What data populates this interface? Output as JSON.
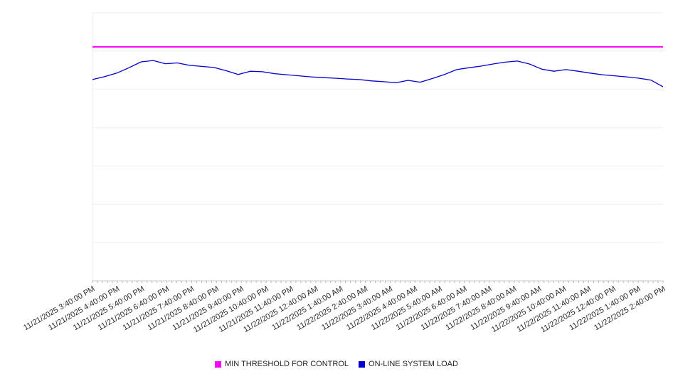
{
  "chart_data": {
    "type": "line",
    "title": "",
    "xlabel": "",
    "ylabel": "",
    "ylim": [
      0,
      100
    ],
    "grid": "horizontal",
    "legend_position": "bottom",
    "y_axis_tick_labels_visible": false,
    "categories": [
      "11/21/2025 3:40:00 PM",
      "11/21/2025 4:40:00 PM",
      "11/21/2025 5:40:00 PM",
      "11/21/2025 6:40:00 PM",
      "11/21/2025 7:40:00 PM",
      "11/21/2025 8:40:00 PM",
      "11/21/2025 9:40:00 PM",
      "11/21/2025 10:40:00 PM",
      "11/21/2025 11:40:00 PM",
      "11/22/2025 12:40:00 AM",
      "11/22/2025 1:40:00 AM",
      "11/22/2025 2:40:00 AM",
      "11/22/2025 3:40:00 AM",
      "11/22/2025 4:40:00 AM",
      "11/22/2025 5:40:00 AM",
      "11/22/2025 6:40:00 AM",
      "11/22/2025 7:40:00 AM",
      "11/22/2025 8:40:00 AM",
      "11/22/2025 9:40:00 AM",
      "11/22/2025 10:40:00 AM",
      "11/22/2025 11:40:00 AM",
      "11/22/2025 12:40:00 PM",
      "11/22/2025 1:40:00 PM",
      "11/22/2025 2:40:00 PM"
    ],
    "series": [
      {
        "name": "MIN THRESHOLD FOR CONTROL",
        "color": "#ff00ff",
        "style": "horizontal-threshold",
        "value": 87.3
      },
      {
        "name": "ON-LINE SYSTEM LOAD",
        "color": "#0000cd",
        "style": "line",
        "values": [
          75.1,
          76.2,
          77.5,
          79.5,
          81.7,
          82.2,
          81.0,
          81.3,
          80.4,
          80.0,
          79.6,
          78.4,
          77.0,
          78.2,
          78.0,
          77.3,
          76.9,
          76.5,
          76.1,
          75.8,
          75.6,
          75.3,
          75.1,
          74.6,
          74.3,
          73.9,
          74.8,
          74.1,
          75.5,
          77.0,
          78.8,
          79.5,
          80.1,
          80.9,
          81.6,
          82.0,
          80.9,
          79.0,
          78.2,
          78.8,
          78.2,
          77.5,
          76.9,
          76.5,
          76.1,
          75.6,
          74.9,
          72.4
        ]
      }
    ]
  },
  "legend": {
    "items": [
      {
        "label": "MIN THRESHOLD FOR CONTROL",
        "color": "#ff00ff"
      },
      {
        "label": "ON-LINE SYSTEM LOAD",
        "color": "#0000cd"
      }
    ]
  }
}
